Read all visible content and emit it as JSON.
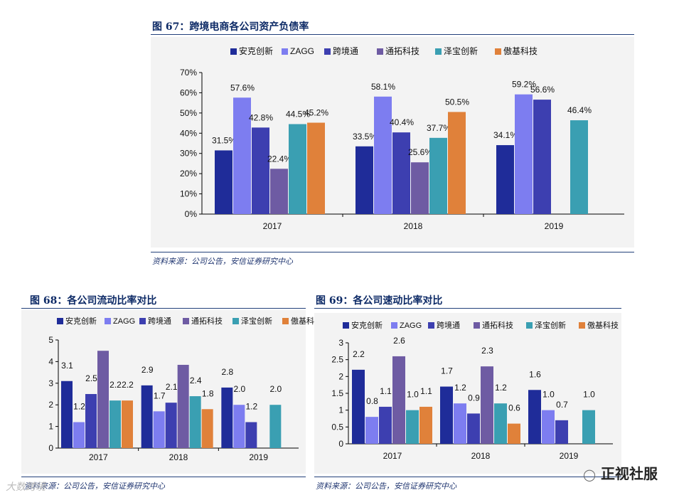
{
  "colors": {
    "anker": "#1f2c99",
    "zagg": "#7d7df0",
    "kjt": "#3d3fb0",
    "tt": "#6e5ba3",
    "zb": "#3a9fb2",
    "aj": "#e0813a"
  },
  "fig67": {
    "title": "图 67：跨境电商各公司资产负债率",
    "source": "资料来源：公司公告，安信证券研究中心",
    "chart_data": {
      "type": "bar",
      "title": "跨境电商各公司资产负债率",
      "categories": [
        "2017",
        "2018",
        "2019"
      ],
      "yticks": [
        "0%",
        "10%",
        "20%",
        "30%",
        "40%",
        "50%",
        "60%",
        "70%"
      ],
      "ylim": [
        0,
        70
      ],
      "series": [
        {
          "name": "安克创新",
          "key": "anker",
          "values": [
            31.5,
            33.5,
            34.1
          ],
          "labels": [
            "31.5%",
            "33.5%",
            "34.1%"
          ]
        },
        {
          "name": "ZAGG",
          "key": "zagg",
          "values": [
            57.6,
            58.1,
            59.2
          ],
          "labels": [
            "57.6%",
            "58.1%",
            "59.2%"
          ]
        },
        {
          "name": "跨境通",
          "key": "kjt",
          "values": [
            42.8,
            40.4,
            56.6
          ],
          "labels": [
            "42.8%",
            "40.4%",
            "56.6%"
          ]
        },
        {
          "name": "通拓科技",
          "key": "tt",
          "values": [
            22.4,
            25.6,
            null
          ],
          "labels": [
            "22.4%",
            "25.6%",
            ""
          ]
        },
        {
          "name": "泽宝创新",
          "key": "zb",
          "values": [
            44.5,
            37.7,
            46.4
          ],
          "labels": [
            "44.5%",
            "37.7%",
            "46.4%"
          ]
        },
        {
          "name": "傲基科技",
          "key": "aj",
          "values": [
            45.2,
            50.5,
            null
          ],
          "labels": [
            "45.2%",
            "50.5%",
            ""
          ]
        }
      ]
    }
  },
  "fig68": {
    "title": "图 68：各公司流动比率对比",
    "source": "资料来源：公司公告，安信证券研究中心",
    "chart_data": {
      "type": "bar",
      "title": "各公司流动比率对比",
      "categories": [
        "2017",
        "2018",
        "2019"
      ],
      "yticks": [
        "0",
        "1",
        "2",
        "3",
        "4",
        "5"
      ],
      "ylim": [
        0,
        5
      ],
      "series": [
        {
          "name": "安克创新",
          "key": "anker",
          "values": [
            3.1,
            2.9,
            2.8
          ],
          "labels": [
            "3.1",
            "2.9",
            "2.8"
          ]
        },
        {
          "name": "ZAGG",
          "key": "zagg",
          "values": [
            1.2,
            1.7,
            2.0
          ],
          "labels": [
            "1.2",
            "1.7",
            "2.0"
          ]
        },
        {
          "name": "跨境通",
          "key": "kjt",
          "values": [
            2.5,
            2.1,
            1.2
          ],
          "labels": [
            "2.5",
            "2.1",
            "1.2"
          ]
        },
        {
          "name": "通拓科技",
          "key": "tt",
          "values": [
            4.5,
            3.85,
            null
          ],
          "labels": [
            "",
            "",
            ""
          ]
        },
        {
          "name": "泽宝创新",
          "key": "zb",
          "values": [
            2.2,
            2.4,
            2.0
          ],
          "labels": [
            "2.2",
            "2.4",
            "2.0"
          ]
        },
        {
          "name": "傲基科技",
          "key": "aj",
          "values": [
            2.2,
            1.8,
            null
          ],
          "labels": [
            "2.2",
            "1.8",
            ""
          ]
        }
      ]
    }
  },
  "fig69": {
    "title": "图 69：各公司速动比率对比",
    "source": "资料来源：公司公告，安信证券研究中心",
    "chart_data": {
      "type": "bar",
      "title": "各公司速动比率对比",
      "categories": [
        "2017",
        "2018",
        "2019"
      ],
      "yticks": [
        "0",
        "0.5",
        "1",
        "1.5",
        "2",
        "2.5",
        "3"
      ],
      "ylim": [
        0,
        3
      ],
      "series": [
        {
          "name": "安克创新",
          "key": "anker",
          "values": [
            2.2,
            1.7,
            1.6
          ],
          "labels": [
            "2.2",
            "1.7",
            "1.6"
          ]
        },
        {
          "name": "ZAGG",
          "key": "zagg",
          "values": [
            0.8,
            1.2,
            1.0
          ],
          "labels": [
            "0.8",
            "1.2",
            "1.0"
          ]
        },
        {
          "name": "跨境通",
          "key": "kjt",
          "values": [
            1.1,
            0.9,
            0.7
          ],
          "labels": [
            "1.1",
            "0.9",
            "0.7"
          ]
        },
        {
          "name": "通拓科技",
          "key": "tt",
          "values": [
            2.6,
            2.3,
            null
          ],
          "labels": [
            "2.6",
            "2.3",
            ""
          ]
        },
        {
          "name": "泽宝创新",
          "key": "zb",
          "values": [
            1.0,
            1.2,
            1.0
          ],
          "labels": [
            "1.0",
            "1.2",
            "1.0"
          ]
        },
        {
          "name": "傲基科技",
          "key": "aj",
          "values": [
            1.1,
            0.6,
            null
          ],
          "labels": [
            "1.1",
            "0.6",
            ""
          ]
        }
      ]
    }
  },
  "watermark": {
    "right_text": "正视社服",
    "left_text": "大数跨境"
  }
}
